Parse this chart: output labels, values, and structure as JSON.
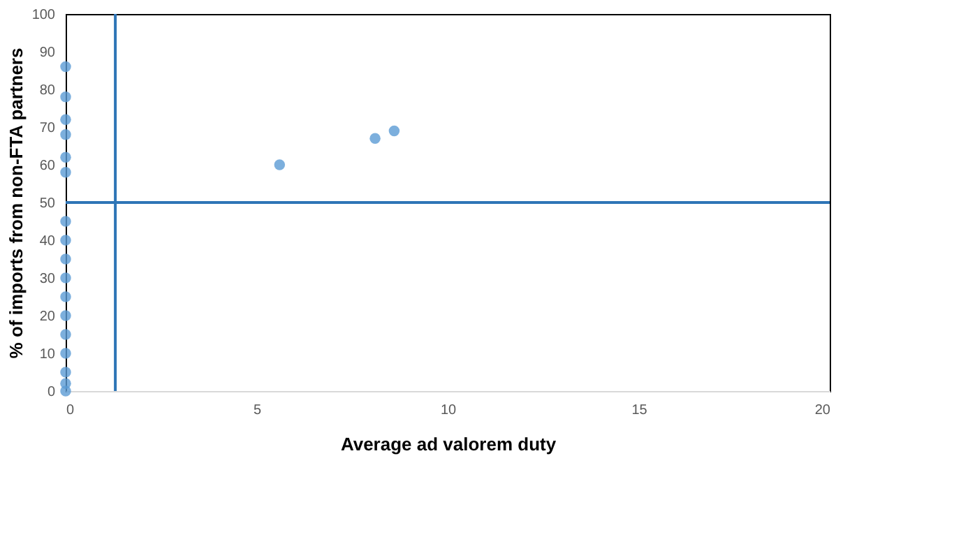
{
  "chart_data": {
    "type": "scatter",
    "xlabel": "Average ad valorem duty",
    "ylabel": "% of imports from non-FTA partners",
    "series": [
      {
        "color": "#5b9bd5",
        "x": [
          0,
          0,
          0,
          0,
          0,
          0,
          0,
          0,
          0,
          0,
          0,
          0,
          0,
          0,
          0,
          0,
          0,
          5.6,
          8.1,
          8.6
        ],
        "values": [
          86,
          78,
          72,
          68,
          62,
          58,
          45,
          40,
          35,
          30,
          25,
          20,
          15,
          10,
          5,
          2,
          0,
          60,
          67,
          69
        ]
      }
    ],
    "xlim": [
      0,
      20
    ],
    "xticks": [
      0,
      5,
      10,
      15,
      20
    ],
    "ylim": [
      0,
      100
    ],
    "yticks": [
      0,
      10,
      20,
      30,
      40,
      50,
      60,
      70,
      80,
      90,
      100
    ],
    "ref_lines": [
      {
        "axis": "x",
        "value": 1.3,
        "color": "#2e75b6"
      },
      {
        "axis": "y",
        "value": 50,
        "color": "#2e75b6"
      }
    ],
    "grid": false,
    "marker": "circle"
  }
}
